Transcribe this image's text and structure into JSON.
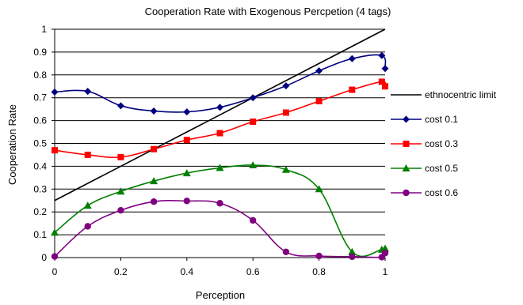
{
  "chart_data": {
    "type": "line",
    "title": "Cooperation Rate with Exogenous Percpetion (4 tags)",
    "xlabel": "Perception",
    "ylabel": "Cooperation Rate",
    "xlim": [
      0,
      1
    ],
    "ylim": [
      0,
      1
    ],
    "x_ticks": [
      0,
      0.2,
      0.4,
      0.6,
      0.8,
      1
    ],
    "x_tick_labels": [
      "0",
      "0.2",
      "0.4",
      "0.6",
      "0.8",
      "1"
    ],
    "y_ticks": [
      0,
      0.1,
      0.2,
      0.3,
      0.4,
      0.5,
      0.6,
      0.7,
      0.8,
      0.9,
      1
    ],
    "y_tick_labels": [
      "0",
      "0.1",
      "0.2",
      "0.3",
      "0.4",
      "0.5",
      "0.6",
      "0.7",
      "0.8",
      "0.9",
      "1"
    ],
    "grid": "horizontal",
    "legend_position": "right",
    "series": [
      {
        "name": "ethnocentric limit",
        "color": "#000000",
        "marker": "none",
        "points": [
          [
            0,
            0.25
          ],
          [
            1,
            1.0
          ]
        ]
      },
      {
        "name": "cost 0.1",
        "color": "#000080",
        "marker": "diamond",
        "points": [
          [
            0,
            0.725
          ],
          [
            0.1,
            0.728
          ],
          [
            0.2,
            0.665
          ],
          [
            0.3,
            0.642
          ],
          [
            0.4,
            0.638
          ],
          [
            0.5,
            0.658
          ],
          [
            0.6,
            0.7
          ],
          [
            0.7,
            0.752
          ],
          [
            0.8,
            0.818
          ],
          [
            0.9,
            0.871
          ],
          [
            0.99,
            0.885
          ],
          [
            1.0,
            0.828
          ]
        ]
      },
      {
        "name": "cost 0.3",
        "color": "#ff0000",
        "marker": "square",
        "points": [
          [
            0,
            0.47
          ],
          [
            0.1,
            0.45
          ],
          [
            0.2,
            0.44
          ],
          [
            0.3,
            0.475
          ],
          [
            0.4,
            0.515
          ],
          [
            0.5,
            0.545
          ],
          [
            0.6,
            0.595
          ],
          [
            0.7,
            0.635
          ],
          [
            0.8,
            0.685
          ],
          [
            0.9,
            0.735
          ],
          [
            0.99,
            0.77
          ],
          [
            1.0,
            0.75
          ]
        ]
      },
      {
        "name": "cost 0.5",
        "color": "#008000",
        "marker": "triangle",
        "points": [
          [
            0,
            0.11
          ],
          [
            0.1,
            0.228
          ],
          [
            0.2,
            0.29
          ],
          [
            0.3,
            0.335
          ],
          [
            0.4,
            0.37
          ],
          [
            0.5,
            0.393
          ],
          [
            0.6,
            0.405
          ],
          [
            0.7,
            0.385
          ],
          [
            0.8,
            0.3
          ],
          [
            0.9,
            0.025
          ],
          [
            0.99,
            0.035
          ],
          [
            1.0,
            0.04
          ]
        ]
      },
      {
        "name": "cost 0.6",
        "color": "#800080",
        "marker": "circle",
        "points": [
          [
            0,
            0.005
          ],
          [
            0.1,
            0.137
          ],
          [
            0.2,
            0.207
          ],
          [
            0.3,
            0.245
          ],
          [
            0.4,
            0.248
          ],
          [
            0.5,
            0.238
          ],
          [
            0.6,
            0.163
          ],
          [
            0.7,
            0.025
          ],
          [
            0.8,
            0.007
          ],
          [
            0.9,
            0.004
          ],
          [
            0.99,
            0.002
          ],
          [
            1.0,
            0.02
          ]
        ]
      }
    ]
  }
}
